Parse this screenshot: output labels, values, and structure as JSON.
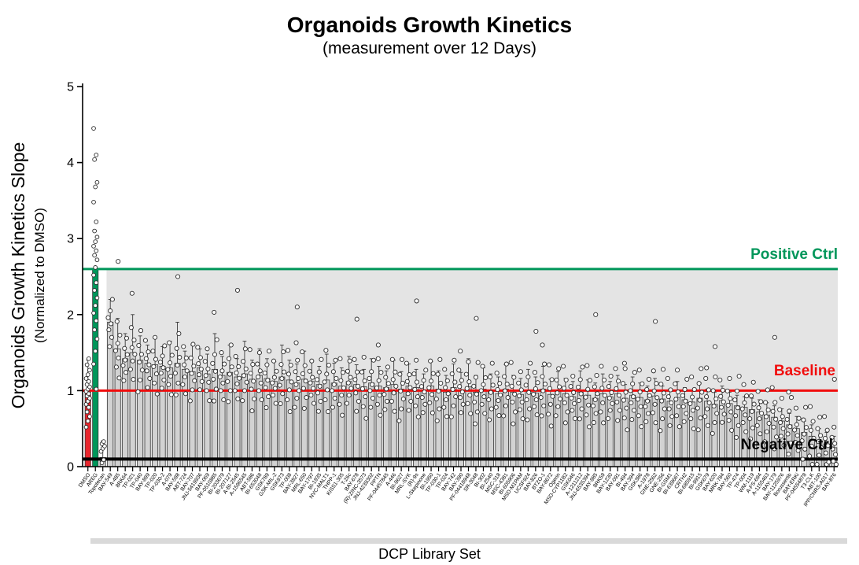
{
  "header": {
    "title": "Organoids Growth Kinetics",
    "subtitle": "(measurement over 12 Days)"
  },
  "chart_data": {
    "type": "bar",
    "title": "Organoids Growth Kinetics",
    "subtitle": "(measurement over 12 Days)",
    "ylabel": "Organoids Growth Kinetics Slope",
    "ylabel_sub": "(Normalized to DMSO)",
    "xlabel": "DCP Library Set",
    "ylim": [
      0,
      5
    ],
    "yticks": [
      0,
      1,
      2,
      3,
      4,
      5
    ],
    "grid": false,
    "legend": "none",
    "bar_fill": "#d2d2d2",
    "bar_stroke": "#3a3a3a",
    "point_style": {
      "fill": "#ffffff",
      "stroke": "#2b2b2b"
    },
    "reference_lines": [
      {
        "label": "Positive Ctrl",
        "value": 2.6,
        "color": "#00965a"
      },
      {
        "label": "Baseline",
        "value": 1.0,
        "color": "#f10d0d"
      },
      {
        "label": "Negative Ctrl",
        "value": 0.1,
        "color": "#000000"
      }
    ],
    "shaded_band": {
      "from_value": 0.1,
      "to_value": 2.6,
      "color": "#e4e4e4",
      "starts_after_bar_index": 2
    },
    "replicate_offsets": [
      -0.32,
      -0.2,
      -0.1,
      -0.02,
      0.06,
      0.15,
      0.3
    ],
    "bars": [
      {
        "l": "DMSO",
        "v": 1.0,
        "h": 1.4,
        "c": "#e8262d",
        "p": [
          0.52,
          0.6,
          0.66,
          0.72,
          0.78,
          0.82,
          0.86,
          0.9,
          0.93,
          0.96,
          0.99,
          1.02,
          1.05,
          1.08,
          1.12,
          1.16,
          1.21,
          1.27,
          1.34,
          1.42
        ]
      },
      {
        "l": "AREG",
        "v": 2.6,
        "h": 2.6,
        "c": "#00965a",
        "p": [
          1.02,
          1.35,
          1.52,
          1.68,
          1.8,
          1.92,
          2.02,
          2.12,
          2.22,
          2.32,
          2.42,
          2.52,
          2.62,
          2.72,
          2.78,
          2.84,
          2.9,
          2.96,
          3.02,
          3.1,
          3.22,
          3.48,
          3.68,
          3.74,
          4.04,
          4.1,
          4.45
        ]
      },
      {
        "l": "Topotecan",
        "v": 0.12,
        "h": 0.34,
        "p": [
          0.05,
          0.09,
          0.2,
          0.24,
          0.27,
          0.3,
          0.33
        ]
      },
      {
        "l": "BAY-549",
        "v": 1.9,
        "h": 2.2
      },
      {
        "l": "A-485",
        "v": 1.55,
        "h": 1.95
      },
      {
        "l": "8RK64",
        "v": 1.42,
        "h": 1.75
      },
      {
        "l": "TP-021",
        "v": 1.5,
        "h": 2.0
      },
      {
        "l": "TP-040",
        "v": 1.4,
        "h": 1.72
      },
      {
        "l": "BAY-899",
        "v": 1.36,
        "h": 1.6
      },
      {
        "l": "TP-020",
        "v": 1.34,
        "h": 1.7
      },
      {
        "l": "TP-030-2",
        "v": 1.32,
        "h": 1.58
      },
      {
        "l": "A-079",
        "v": 1.3,
        "h": 1.65
      },
      {
        "l": "BAY-598",
        "v": 1.36,
        "h": 1.9
      },
      {
        "l": "ABT-724",
        "v": 1.28,
        "h": 1.52
      },
      {
        "l": "BAY-707",
        "v": 1.25,
        "h": 1.6
      },
      {
        "l": "JNJ-5419936",
        "v": 1.3,
        "h": 1.55
      },
      {
        "l": "BAY-069",
        "v": 1.22,
        "h": 1.48
      },
      {
        "l": "PF-0510885",
        "v": 1.28,
        "h": 1.75
      },
      {
        "l": "BI-203679",
        "v": 1.2,
        "h": 1.45
      },
      {
        "l": "BI-207127",
        "v": 1.24,
        "h": 1.6
      },
      {
        "l": "A-BI-2545",
        "v": 1.18,
        "h": 1.42
      },
      {
        "l": "A-1596545",
        "v": 1.22,
        "h": 1.65
      },
      {
        "l": "ABT-586",
        "v": 1.15,
        "h": 1.4
      },
      {
        "l": "BI-653048",
        "v": 1.2,
        "h": 1.55
      },
      {
        "l": "GSK789",
        "v": 1.16,
        "h": 1.42
      },
      {
        "l": "GSK-MIL-2",
        "v": 1.12,
        "h": 1.38
      },
      {
        "l": "GSK973",
        "v": 1.18,
        "h": 1.6
      },
      {
        "l": "TP-008",
        "v": 1.14,
        "h": 1.4
      },
      {
        "l": "BAY-3827",
        "v": 1.1,
        "h": 1.35
      },
      {
        "l": "MRL-650",
        "v": 1.15,
        "h": 1.52
      },
      {
        "l": "BAY-1797",
        "v": 1.12,
        "h": 1.38
      },
      {
        "l": "BI-1935",
        "v": 1.08,
        "h": 1.32
      },
      {
        "l": "NVC-MALT1",
        "v": 1.14,
        "h": 1.48
      },
      {
        "l": "THPP-1",
        "v": 1.1,
        "h": 1.36
      },
      {
        "l": "KISS1-305",
        "v": 1.06,
        "h": 1.3
      },
      {
        "l": "T-26c",
        "v": 1.12,
        "h": 1.45
      },
      {
        "l": "BAY-678",
        "v": 1.08,
        "h": 1.34
      },
      {
        "l": "(R)-ZINC-3573",
        "v": 1.05,
        "h": 1.28
      },
      {
        "l": "JNJ-4239302",
        "v": 1.1,
        "h": 1.42
      },
      {
        "l": "PPTN",
        "v": 1.06,
        "h": 1.32
      },
      {
        "l": "PF-04457845",
        "v": 1.04,
        "h": 1.26
      },
      {
        "l": "A-446",
        "v": 1.08,
        "h": 1.4
      },
      {
        "l": "BI-9627",
        "v": 1.02,
        "h": 1.25
      },
      {
        "l": "MRL-SYK",
        "v": 1.06,
        "h": 1.35
      },
      {
        "l": "(R)-9s",
        "v": 1.04,
        "h": 1.28
      },
      {
        "l": "L-Skepinone",
        "v": 1.0,
        "h": 1.22
      },
      {
        "l": "BI-1950",
        "v": 1.06,
        "h": 1.38
      },
      {
        "l": "TP-030-1",
        "v": 1.02,
        "h": 1.26
      },
      {
        "l": "TP-024",
        "v": 0.98,
        "h": 1.2
      },
      {
        "l": "BAY-742",
        "v": 1.04,
        "h": 1.35
      },
      {
        "l": "BAY-390",
        "v": 1.0,
        "h": 1.24
      },
      {
        "l": "PF-04418948",
        "v": 1.05,
        "h": 1.42
      },
      {
        "l": "SR-3048",
        "v": 0.98,
        "h": 1.2
      },
      {
        "l": "BI-302",
        "v": 1.02,
        "h": 1.3
      },
      {
        "l": "BI-2540",
        "v": 1.0,
        "h": 1.22
      },
      {
        "l": "MSC-318",
        "v": 0.96,
        "h": 1.18
      },
      {
        "l": "MSC-4381",
        "v": 1.02,
        "h": 1.34
      },
      {
        "l": "BI-605906",
        "v": 0.98,
        "h": 1.2
      },
      {
        "l": "MSD-M1PAM",
        "v": 0.95,
        "h": 1.16
      },
      {
        "l": "UCSF924",
        "v": 1.0,
        "h": 1.28
      },
      {
        "l": "BAY-826",
        "v": 0.97,
        "h": 1.18
      },
      {
        "l": "BTZO-1",
        "v": 1.02,
        "h": 1.32
      },
      {
        "l": "BAY-8672",
        "v": 0.95,
        "h": 1.15
      },
      {
        "l": "Ogerin",
        "v": 0.99,
        "h": 1.25
      },
      {
        "l": "MSD-CYP11B2",
        "v": 0.96,
        "h": 1.16
      },
      {
        "l": "GSK046",
        "v": 0.92,
        "h": 1.12
      },
      {
        "l": "A-1211212",
        "v": 0.98,
        "h": 1.26
      },
      {
        "l": "JNJ-6535394",
        "v": 0.94,
        "h": 1.14
      },
      {
        "l": "BAY-985",
        "v": 0.9,
        "h": 1.1
      },
      {
        "l": "8RK59",
        "v": 0.96,
        "h": 1.22
      },
      {
        "l": "BAY-1230",
        "v": 0.92,
        "h": 1.12
      },
      {
        "l": "BAY-091",
        "v": 0.96,
        "h": 1.2
      },
      {
        "l": "BI-494",
        "v": 0.9,
        "h": 1.08
      },
      {
        "l": "BAY-394",
        "v": 0.94,
        "h": 1.18
      },
      {
        "l": "GSK386",
        "v": 0.91,
        "h": 1.1
      },
      {
        "l": "A-1978",
        "v": 0.88,
        "h": 1.06
      },
      {
        "l": "GNE-2562",
        "v": 0.93,
        "h": 1.16
      },
      {
        "l": "GNE-256",
        "v": 0.89,
        "h": 1.06
      },
      {
        "l": "BI-GSM1",
        "v": 0.86,
        "h": 1.02
      },
      {
        "l": "BI-639667",
        "v": 0.91,
        "h": 1.12
      },
      {
        "l": "CRTH2",
        "v": 0.88,
        "h": 1.04
      },
      {
        "l": "BI-685915",
        "v": 0.85,
        "h": 1.0
      },
      {
        "l": "BI-9915",
        "v": 0.9,
        "h": 1.1
      },
      {
        "l": "GSK679",
        "v": 0.86,
        "h": 1.02
      },
      {
        "l": "BAY-620",
        "v": 0.82,
        "h": 0.98
      },
      {
        "l": "MRK-784",
        "v": 0.87,
        "h": 1.06
      },
      {
        "l": "BAY-560",
        "v": 0.83,
        "h": 0.98
      },
      {
        "l": "TP-474",
        "v": 0.8,
        "h": 0.94
      },
      {
        "l": "TP-004",
        "v": 0.78,
        "h": 0.92
      },
      {
        "l": "WM-1119",
        "v": 0.75,
        "h": 0.9
      },
      {
        "l": "A-FS-694",
        "v": 0.72,
        "h": 0.88
      },
      {
        "l": "A-1155463",
        "v": 0.68,
        "h": 0.84
      },
      {
        "l": "BAY-179",
        "v": 0.65,
        "h": 0.8
      },
      {
        "l": "BAY-1125976",
        "v": 0.6,
        "h": 0.76
      },
      {
        "l": "Borussertib",
        "v": 0.55,
        "h": 0.7
      },
      {
        "l": "BAY-ERKi",
        "v": 0.5,
        "h": 0.66
      },
      {
        "l": "PF-04554878",
        "v": 0.45,
        "h": 0.6
      },
      {
        "l": "T3-CLK",
        "v": 0.4,
        "h": 0.55
      },
      {
        "l": "ABT-100",
        "v": 0.35,
        "h": 0.5
      },
      {
        "l": "IPP/CNRS-A017",
        "v": 0.3,
        "h": 0.45
      },
      {
        "l": "BAY-876",
        "v": 0.25,
        "h": 0.4
      }
    ]
  },
  "footer": {
    "xlabel": "DCP Library Set"
  }
}
